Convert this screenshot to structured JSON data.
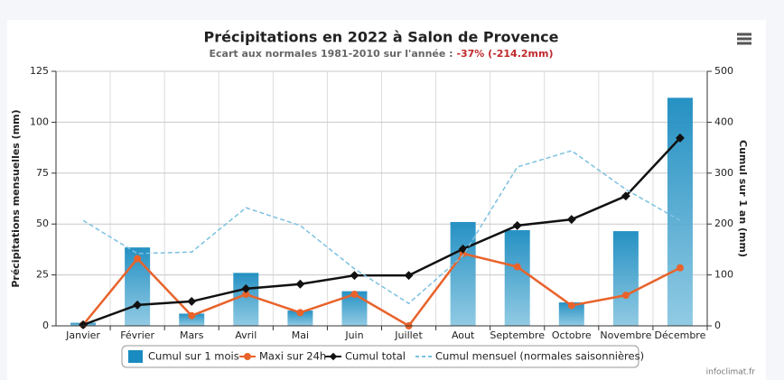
{
  "chart_data": {
    "type": "combo",
    "title": "Précipitations en 2022 à Salon de Provence",
    "subtitle": "Ecart aux normales 1981-2010 sur l'année :",
    "subtitle_highlight": "-37% (-214.2mm)",
    "y_label": "Précipitations mensuelles (mm)",
    "y2_label": "Cumul sur 1 an (mm)",
    "credit": "infoclimat.fr",
    "categories": [
      "Janvier",
      "Février",
      "Mars",
      "Avril",
      "Mai",
      "Juin",
      "Juillet",
      "Aout",
      "Septembre",
      "Octobre",
      "Novembre",
      "Décembre"
    ],
    "ylim": [
      0,
      125
    ],
    "yticks": [
      0,
      25,
      50,
      75,
      100,
      125
    ],
    "y2lim": [
      0,
      500
    ],
    "y2ticks": [
      0,
      100,
      200,
      300,
      400,
      500
    ],
    "grid": true,
    "series": [
      {
        "name": "Cumul sur 1 mois",
        "type": "bar",
        "color": "#1a8bc0",
        "values": [
          1.5,
          38.5,
          6,
          26,
          7.5,
          17,
          0,
          51,
          47,
          11.5,
          46.5,
          112
        ]
      },
      {
        "name": "Maxi sur 24h",
        "type": "line",
        "color": "#e8632c",
        "values": [
          0.5,
          33,
          5,
          15.5,
          6.5,
          15.5,
          0,
          35.5,
          29,
          10,
          15,
          28.5
        ]
      },
      {
        "name": "Cumul total",
        "type": "line",
        "axis": "y2",
        "color": "#111111",
        "values": [
          2,
          41,
          48,
          73,
          82,
          99,
          99,
          151,
          197,
          209,
          255,
          369
        ]
      },
      {
        "name": "Cumul mensuel (normales saisonnières)",
        "type": "dashed-line",
        "axis": "y2",
        "color": "#7cc0e0",
        "values": [
          207,
          142,
          145,
          232,
          197,
          112,
          44,
          138,
          312,
          344,
          268,
          207
        ]
      }
    ]
  }
}
